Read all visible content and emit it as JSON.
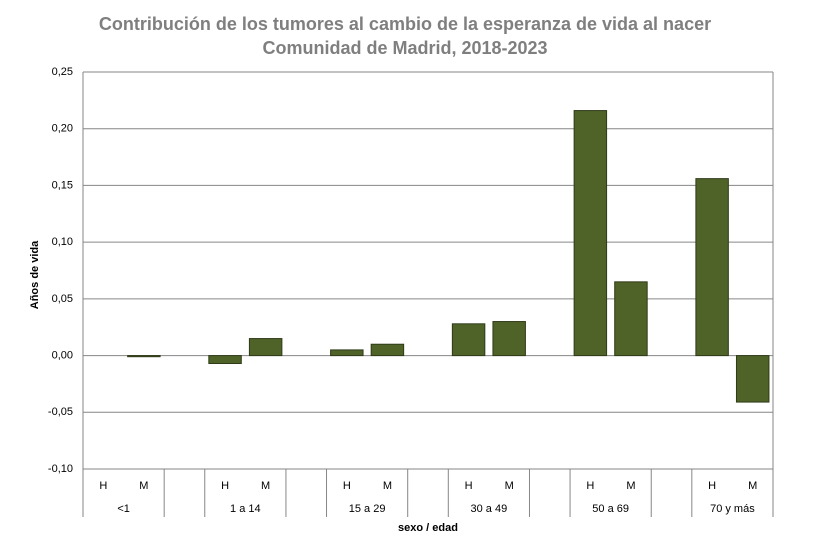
{
  "chart_data": {
    "type": "bar",
    "title": "Contribución de los tumores al cambio de la esperanza de vida al nacer",
    "subtitle": "Comunidad de Madrid, 2018-2023",
    "y_label": "Años de vida",
    "x_label": "sexo / edad",
    "groups": [
      "<1",
      "1 a 14",
      "15 a 29",
      "30 a 49",
      "50 a 69",
      "70 y más"
    ],
    "categories": [
      "H",
      "M",
      "H",
      "M",
      "H",
      "M",
      "H",
      "M",
      "H",
      "M",
      "H",
      "M"
    ],
    "values": [
      0,
      -0.001,
      -0.007,
      0.015,
      0.005,
      0.01,
      0.028,
      0.03,
      0.216,
      0.065,
      0.156,
      -0.041
    ],
    "color": "#4f6228",
    "ylim": [
      -0.1,
      0.25
    ],
    "yticks": [
      {
        "value": -0.1,
        "label": "-0,10"
      },
      {
        "value": -0.05,
        "label": "-0,05"
      },
      {
        "value": 0,
        "label": "0,00"
      },
      {
        "value": 0.05,
        "label": "0,05"
      },
      {
        "value": 0.1,
        "label": "0,10"
      },
      {
        "value": 0.15,
        "label": "0,15"
      },
      {
        "value": 0.2,
        "label": "0,20"
      },
      {
        "value": 0.25,
        "label": "0,25"
      }
    ],
    "grid": true
  }
}
